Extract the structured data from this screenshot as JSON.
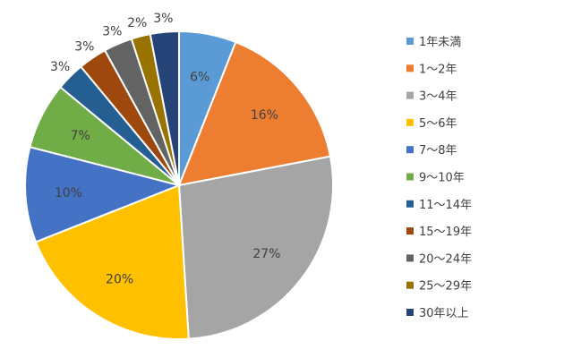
{
  "chart_data": {
    "type": "pie",
    "title": "",
    "legend_position": "right",
    "slices": [
      {
        "label": "1年未満",
        "value": 6,
        "display": "6%",
        "color": "#5B9BD5"
      },
      {
        "label": "1～2年",
        "value": 16,
        "display": "16%",
        "color": "#ED7D31"
      },
      {
        "label": "3～4年",
        "value": 27,
        "display": "27%",
        "color": "#A5A5A5"
      },
      {
        "label": "5～6年",
        "value": 20,
        "display": "20%",
        "color": "#FFC000"
      },
      {
        "label": "7～8年",
        "value": 10,
        "display": "10%",
        "color": "#4472C4"
      },
      {
        "label": "9～10年",
        "value": 7,
        "display": "7%",
        "color": "#70AD47"
      },
      {
        "label": "11～14年",
        "value": 3,
        "display": "3%",
        "color": "#255E91"
      },
      {
        "label": "15～19年",
        "value": 3,
        "display": "3%",
        "color": "#9E480E"
      },
      {
        "label": "20～24年",
        "value": 3,
        "display": "3%",
        "color": "#636363"
      },
      {
        "label": "25～29年",
        "value": 2,
        "display": "2%",
        "color": "#997300"
      },
      {
        "label": "30年以上",
        "value": 3,
        "display": "3%",
        "color": "#264478"
      }
    ]
  }
}
